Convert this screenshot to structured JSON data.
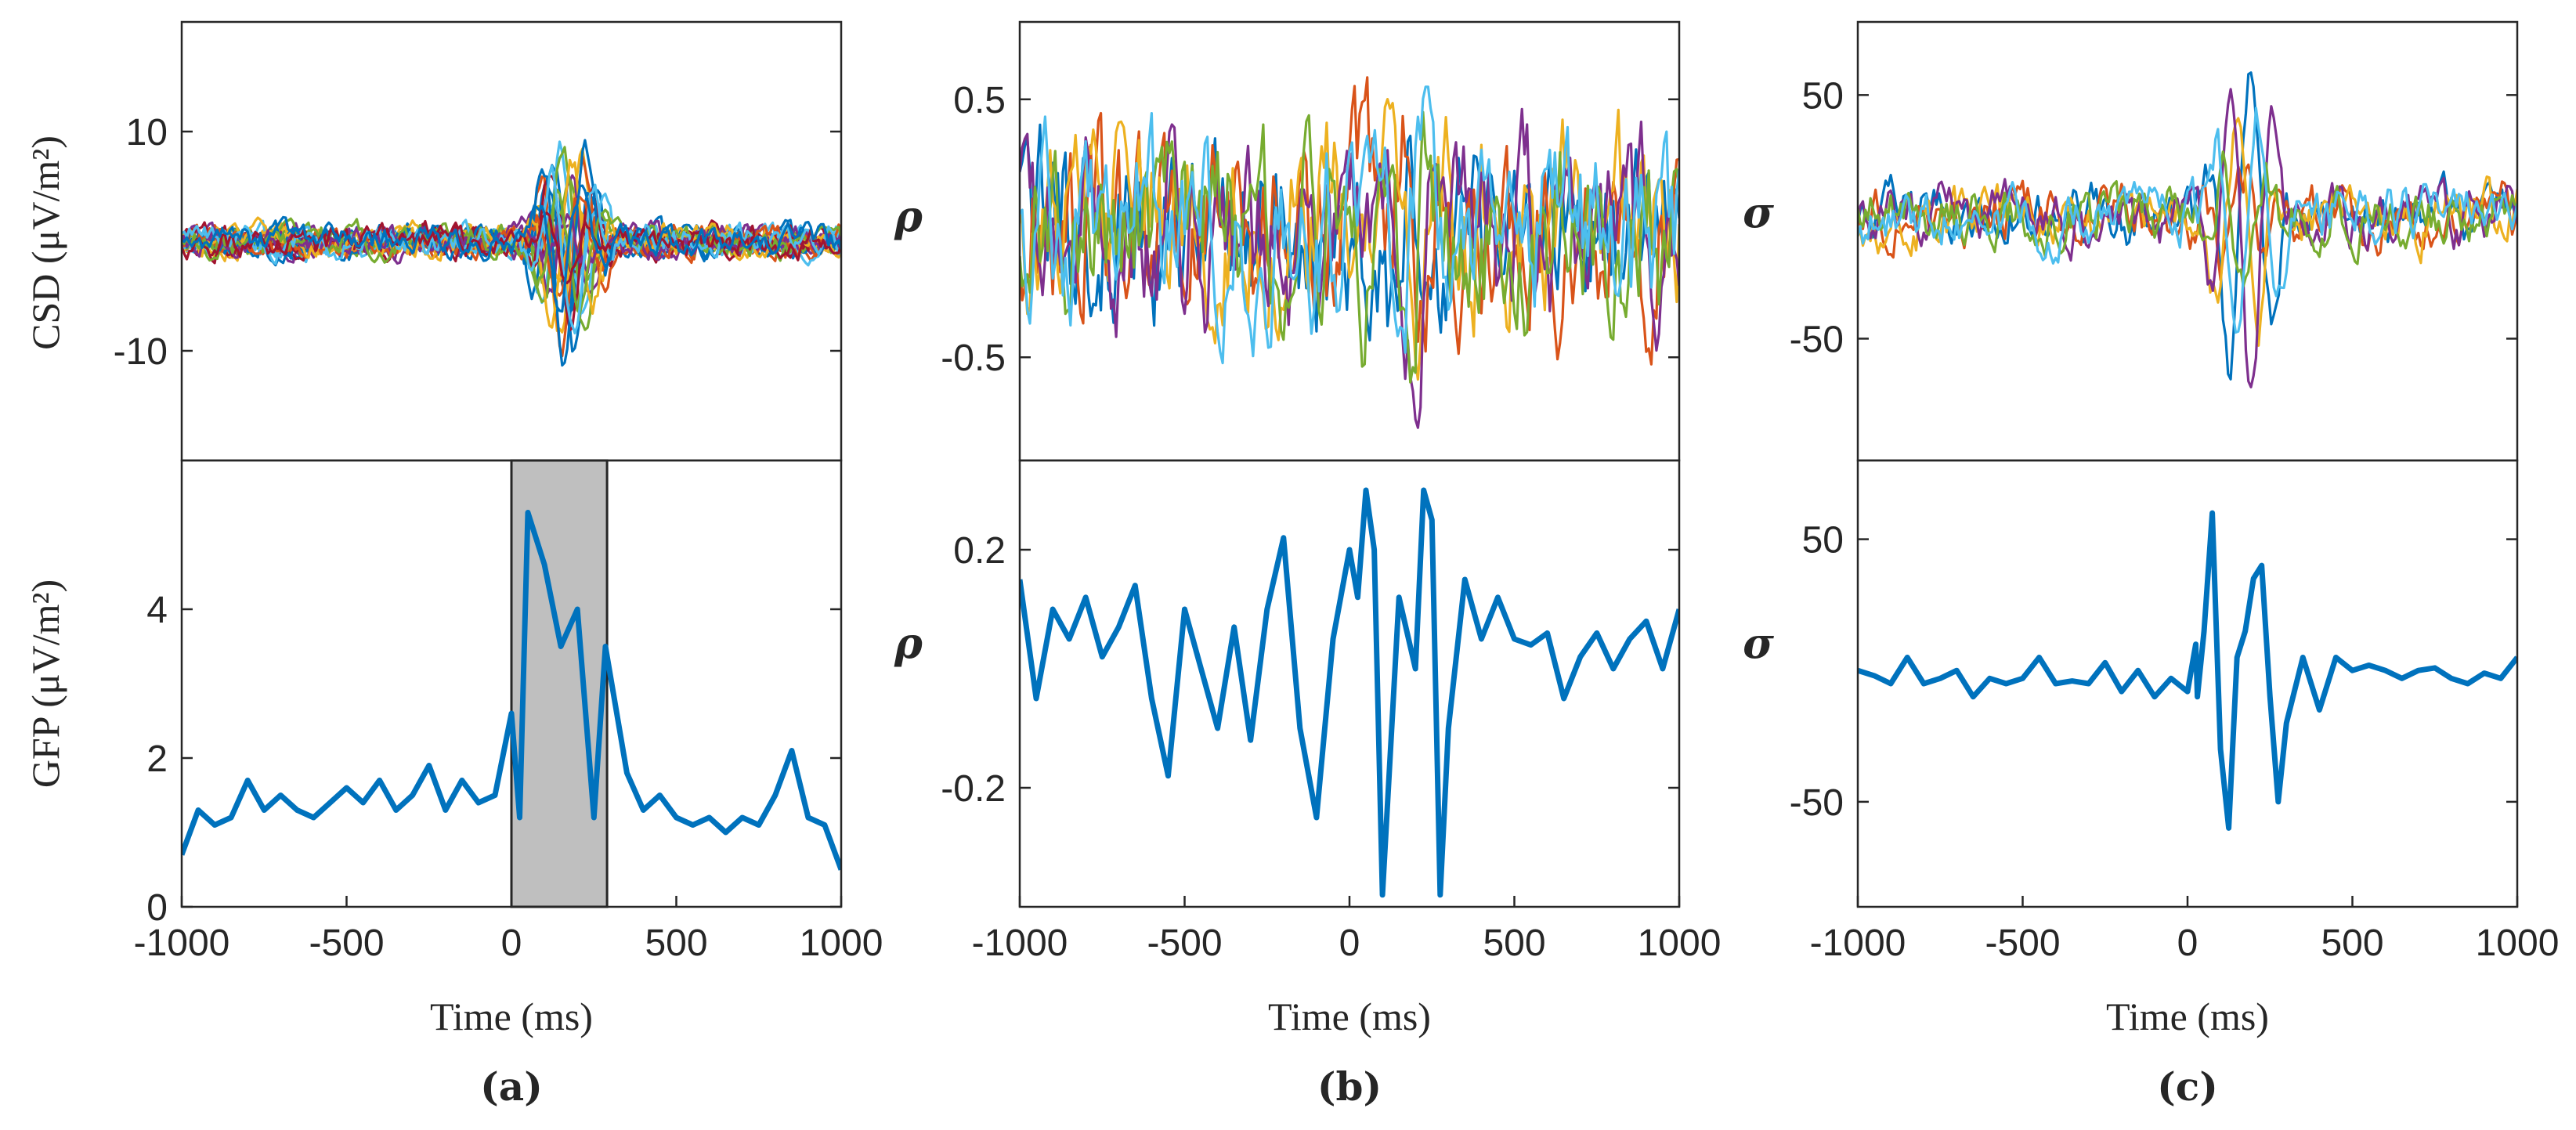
{
  "chart_data": [
    {
      "id": "a-top",
      "type": "line",
      "ylabel": "CSD (μV/m²)",
      "xlim": [
        -1000,
        1000
      ],
      "ylim": [
        -20,
        20
      ],
      "yticks": [
        {
          "value": 10,
          "label": "10"
        },
        {
          "value": -10,
          "label": "-10"
        }
      ],
      "xticks": [],
      "multi_channel": true,
      "n_channels": 22,
      "channel_colors": [
        "#0072BD",
        "#D95319",
        "#EDB120",
        "#7E2F8E",
        "#77AC30",
        "#4DBEEE",
        "#A2142F"
      ],
      "channel_amplitude": 1.3,
      "event_peak": 12.5,
      "event_trough": -11.5
    },
    {
      "id": "a-bottom",
      "type": "line",
      "ylabel": "GFP (μV/m²)",
      "xlim": [
        -1000,
        1000
      ],
      "ylim": [
        0,
        6
      ],
      "yticks": [
        {
          "value": 0,
          "label": "0"
        },
        {
          "value": 2,
          "label": "2"
        },
        {
          "value": 4,
          "label": "4"
        }
      ],
      "xticks": [
        {
          "value": -1000,
          "label": "-1000"
        },
        {
          "value": -500,
          "label": "-500"
        },
        {
          "value": 0,
          "label": "0"
        },
        {
          "value": 500,
          "label": "500"
        },
        {
          "value": 1000,
          "label": "1000"
        }
      ],
      "xlabel": "Time (ms)",
      "highlight_window": [
        0,
        290
      ],
      "series": [
        {
          "name": "GFP",
          "color": "#0072BD",
          "points": [
            [
              -1000,
              0.7
            ],
            [
              -950,
              1.3
            ],
            [
              -900,
              1.1
            ],
            [
              -850,
              1.2
            ],
            [
              -800,
              1.7
            ],
            [
              -750,
              1.3
            ],
            [
              -700,
              1.5
            ],
            [
              -650,
              1.3
            ],
            [
              -600,
              1.2
            ],
            [
              -550,
              1.4
            ],
            [
              -500,
              1.6
            ],
            [
              -450,
              1.4
            ],
            [
              -400,
              1.7
            ],
            [
              -350,
              1.3
            ],
            [
              -300,
              1.5
            ],
            [
              -250,
              1.9
            ],
            [
              -200,
              1.3
            ],
            [
              -150,
              1.7
            ],
            [
              -100,
              1.4
            ],
            [
              -50,
              1.5
            ],
            [
              0,
              2.6
            ],
            [
              25,
              1.2
            ],
            [
              50,
              5.3
            ],
            [
              100,
              4.6
            ],
            [
              150,
              3.5
            ],
            [
              200,
              4.0
            ],
            [
              250,
              1.2
            ],
            [
              285,
              3.5
            ],
            [
              350,
              1.8
            ],
            [
              400,
              1.3
            ],
            [
              450,
              1.5
            ],
            [
              500,
              1.2
            ],
            [
              550,
              1.1
            ],
            [
              600,
              1.2
            ],
            [
              650,
              1.0
            ],
            [
              700,
              1.2
            ],
            [
              750,
              1.1
            ],
            [
              800,
              1.5
            ],
            [
              850,
              2.1
            ],
            [
              900,
              1.2
            ],
            [
              950,
              1.1
            ],
            [
              1000,
              0.5
            ]
          ]
        }
      ],
      "line_width": 7
    },
    {
      "id": "b-top",
      "type": "line",
      "ylabel": "ρ",
      "xlim": [
        -1000,
        1000
      ],
      "ylim": [
        -0.9,
        0.8
      ],
      "yticks": [
        {
          "value": 0.5,
          "label": "0.5"
        },
        {
          "value": -0.5,
          "label": "-0.5"
        }
      ],
      "xticks": [],
      "multi_channel": true,
      "n_channels": 6,
      "channel_colors": [
        "#0072BD",
        "#D95319",
        "#EDB120",
        "#7E2F8E",
        "#77AC30",
        "#4DBEEE"
      ],
      "channel_amplitude": 0.35,
      "event_peak": 0.5,
      "event_trough": -0.6
    },
    {
      "id": "b-bottom",
      "type": "line",
      "ylabel": "ρ",
      "xlim": [
        -1000,
        1000
      ],
      "ylim": [
        -0.4,
        0.35
      ],
      "yticks": [
        {
          "value": 0.2,
          "label": "0.2"
        },
        {
          "value": -0.2,
          "label": "-0.2"
        }
      ],
      "xticks": [
        {
          "value": -1000,
          "label": "-1000"
        },
        {
          "value": -500,
          "label": "-500"
        },
        {
          "value": 0,
          "label": "0"
        },
        {
          "value": 500,
          "label": "500"
        },
        {
          "value": 1000,
          "label": "1000"
        }
      ],
      "xlabel": "Time (ms)",
      "series": [
        {
          "name": "mean ρ",
          "color": "#0072BD",
          "points": [
            [
              -1000,
              0.15
            ],
            [
              -950,
              -0.05
            ],
            [
              -900,
              0.1
            ],
            [
              -850,
              0.05
            ],
            [
              -800,
              0.12
            ],
            [
              -750,
              0.02
            ],
            [
              -700,
              0.07
            ],
            [
              -650,
              0.14
            ],
            [
              -600,
              -0.05
            ],
            [
              -550,
              -0.18
            ],
            [
              -500,
              0.1
            ],
            [
              -450,
              0.0
            ],
            [
              -400,
              -0.1
            ],
            [
              -350,
              0.07
            ],
            [
              -300,
              -0.12
            ],
            [
              -250,
              0.1
            ],
            [
              -200,
              0.22
            ],
            [
              -150,
              -0.1
            ],
            [
              -100,
              -0.25
            ],
            [
              -50,
              0.05
            ],
            [
              0,
              0.2
            ],
            [
              25,
              0.12
            ],
            [
              50,
              0.3
            ],
            [
              75,
              0.2
            ],
            [
              100,
              -0.38
            ],
            [
              150,
              0.12
            ],
            [
              200,
              0.0
            ],
            [
              225,
              0.3
            ],
            [
              250,
              0.25
            ],
            [
              275,
              -0.38
            ],
            [
              300,
              -0.1
            ],
            [
              350,
              0.15
            ],
            [
              400,
              0.05
            ],
            [
              450,
              0.12
            ],
            [
              500,
              0.05
            ],
            [
              550,
              0.04
            ],
            [
              600,
              0.06
            ],
            [
              650,
              -0.05
            ],
            [
              700,
              0.02
            ],
            [
              750,
              0.06
            ],
            [
              800,
              0.0
            ],
            [
              850,
              0.05
            ],
            [
              900,
              0.08
            ],
            [
              950,
              0.0
            ],
            [
              1000,
              0.1
            ]
          ]
        }
      ],
      "line_width": 7
    },
    {
      "id": "c-top",
      "type": "line",
      "ylabel": "σ",
      "xlim": [
        -1000,
        1000
      ],
      "ylim": [
        -100,
        80
      ],
      "yticks": [
        {
          "value": 50,
          "label": "50"
        },
        {
          "value": -50,
          "label": "-50"
        }
      ],
      "xticks": [],
      "multi_channel": true,
      "n_channels": 6,
      "channel_colors": [
        "#0072BD",
        "#D95319",
        "#EDB120",
        "#7E2F8E",
        "#77AC30",
        "#4DBEEE"
      ],
      "channel_amplitude": 12,
      "event_peak": 75,
      "event_trough": -100
    },
    {
      "id": "c-bottom",
      "type": "line",
      "ylabel": "σ",
      "xlim": [
        -1000,
        1000
      ],
      "ylim": [
        -90,
        80
      ],
      "yticks": [
        {
          "value": 50,
          "label": "50"
        },
        {
          "value": -50,
          "label": "-50"
        }
      ],
      "xticks": [
        {
          "value": -1000,
          "label": "-1000"
        },
        {
          "value": -500,
          "label": "-500"
        },
        {
          "value": 0,
          "label": "0"
        },
        {
          "value": 500,
          "label": "500"
        },
        {
          "value": 1000,
          "label": "1000"
        }
      ],
      "xlabel": "Time (ms)",
      "series": [
        {
          "name": "mean σ",
          "color": "#0072BD",
          "points": [
            [
              -1000,
              0
            ],
            [
              -950,
              -2
            ],
            [
              -900,
              -5
            ],
            [
              -850,
              5
            ],
            [
              -800,
              -5
            ],
            [
              -750,
              -3
            ],
            [
              -700,
              0
            ],
            [
              -650,
              -10
            ],
            [
              -600,
              -3
            ],
            [
              -550,
              -5
            ],
            [
              -500,
              -3
            ],
            [
              -450,
              5
            ],
            [
              -400,
              -5
            ],
            [
              -350,
              -4
            ],
            [
              -300,
              -5
            ],
            [
              -250,
              3
            ],
            [
              -200,
              -8
            ],
            [
              -150,
              0
            ],
            [
              -100,
              -10
            ],
            [
              -50,
              -3
            ],
            [
              0,
              -8
            ],
            [
              25,
              10
            ],
            [
              30,
              -10
            ],
            [
              50,
              15
            ],
            [
              75,
              60
            ],
            [
              100,
              -30
            ],
            [
              125,
              -60
            ],
            [
              150,
              5
            ],
            [
              175,
              15
            ],
            [
              200,
              35
            ],
            [
              225,
              40
            ],
            [
              250,
              -10
            ],
            [
              275,
              -50
            ],
            [
              300,
              -20
            ],
            [
              350,
              5
            ],
            [
              400,
              -15
            ],
            [
              450,
              5
            ],
            [
              500,
              0
            ],
            [
              550,
              2
            ],
            [
              600,
              0
            ],
            [
              650,
              -3
            ],
            [
              700,
              0
            ],
            [
              750,
              1
            ],
            [
              800,
              -3
            ],
            [
              850,
              -5
            ],
            [
              900,
              -1
            ],
            [
              950,
              -3
            ],
            [
              1000,
              5
            ]
          ]
        }
      ],
      "line_width": 7
    }
  ],
  "panel_labels": [
    "(a)",
    "(b)",
    "(c)"
  ]
}
